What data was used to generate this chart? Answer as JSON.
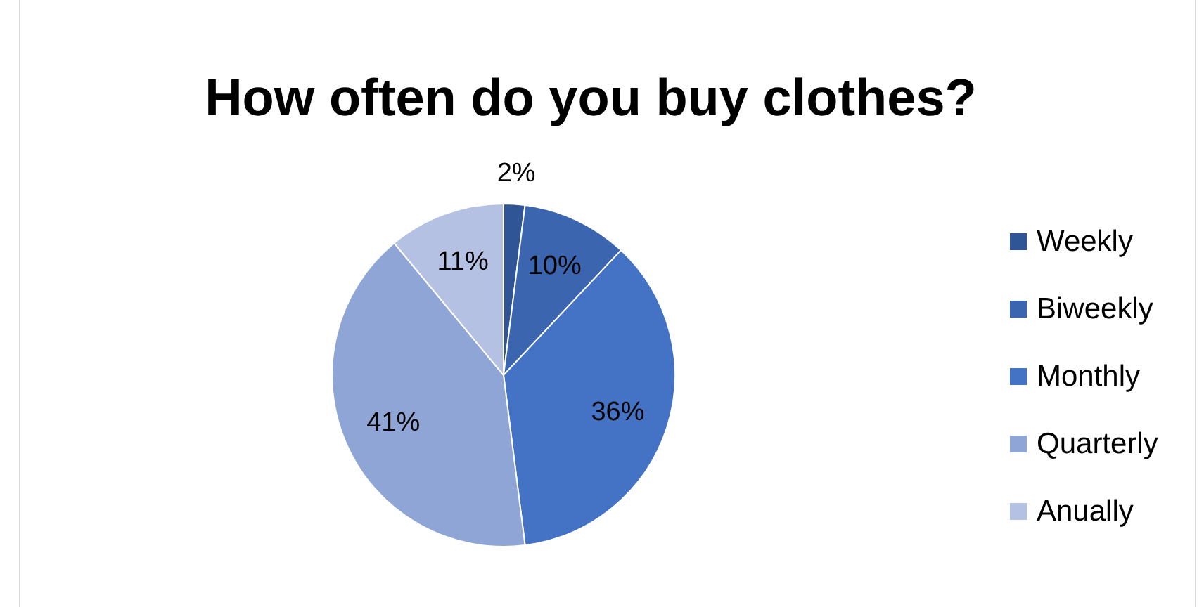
{
  "chart_data": {
    "type": "pie",
    "title": "How often do you buy clothes?",
    "categories": [
      "Weekly",
      "Biweekly",
      "Monthly",
      "Quarterly",
      "Anually"
    ],
    "values": [
      2,
      10,
      36,
      41,
      11
    ],
    "colors": [
      "#2f5597",
      "#3c65b0",
      "#4472c4",
      "#8fa5d6",
      "#b4c1e3"
    ],
    "value_labels": [
      "2%",
      "10%",
      "36%",
      "41%",
      "11%"
    ],
    "legend": "right"
  }
}
